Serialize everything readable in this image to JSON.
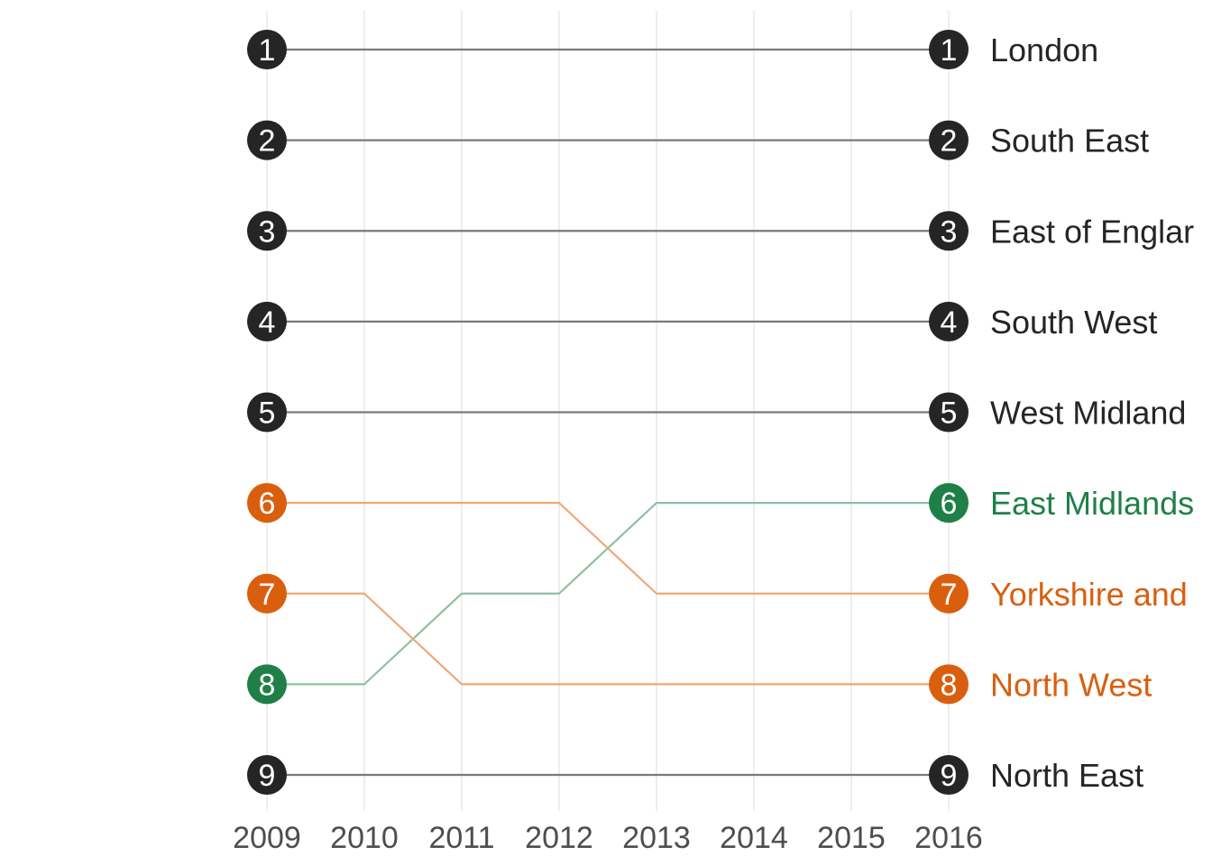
{
  "chart_data": {
    "type": "line",
    "title": "",
    "xlabel": "",
    "ylabel": "",
    "x": [
      2009,
      2010,
      2011,
      2012,
      2013,
      2014,
      2015,
      2016
    ],
    "x_tick_labels": [
      "2009",
      "2010",
      "2011",
      "2012",
      "2013",
      "2014",
      "2015",
      "2016"
    ],
    "xlim": [
      2009,
      2016
    ],
    "ylim": [
      1,
      9
    ],
    "y_reversed": true,
    "grid": "vertical only",
    "legend": "none (labels at right end of lines)",
    "series": [
      {
        "name": "London",
        "values": [
          1,
          1,
          1,
          1,
          1,
          1,
          1,
          1
        ],
        "color": "#252525",
        "line_color": "#7a7a7a"
      },
      {
        "name": "South East",
        "values": [
          2,
          2,
          2,
          2,
          2,
          2,
          2,
          2
        ],
        "color": "#252525",
        "line_color": "#7a7a7a"
      },
      {
        "name": "East of Englar",
        "values": [
          3,
          3,
          3,
          3,
          3,
          3,
          3,
          3
        ],
        "color": "#252525",
        "line_color": "#7a7a7a"
      },
      {
        "name": "South West",
        "values": [
          4,
          4,
          4,
          4,
          4,
          4,
          4,
          4
        ],
        "color": "#252525",
        "line_color": "#7a7a7a"
      },
      {
        "name": "West Midland",
        "values": [
          5,
          5,
          5,
          5,
          5,
          5,
          5,
          5
        ],
        "color": "#252525",
        "line_color": "#7a7a7a"
      },
      {
        "name": "East Midlands",
        "values": [
          8,
          8,
          7,
          7,
          6,
          6,
          6,
          6
        ],
        "color": "#1f8047",
        "line_color": "#8cc0a2"
      },
      {
        "name": "Yorkshire and",
        "values": [
          6,
          6,
          6,
          6,
          7,
          7,
          7,
          7
        ],
        "color": "#d95f0e",
        "line_color": "#eea878"
      },
      {
        "name": "North West",
        "values": [
          7,
          7,
          8,
          8,
          8,
          8,
          8,
          8
        ],
        "color": "#d95f0e",
        "line_color": "#eea878"
      },
      {
        "name": "North East",
        "values": [
          9,
          9,
          9,
          9,
          9,
          9,
          9,
          9
        ],
        "color": "#252525",
        "line_color": "#7a7a7a"
      }
    ]
  }
}
